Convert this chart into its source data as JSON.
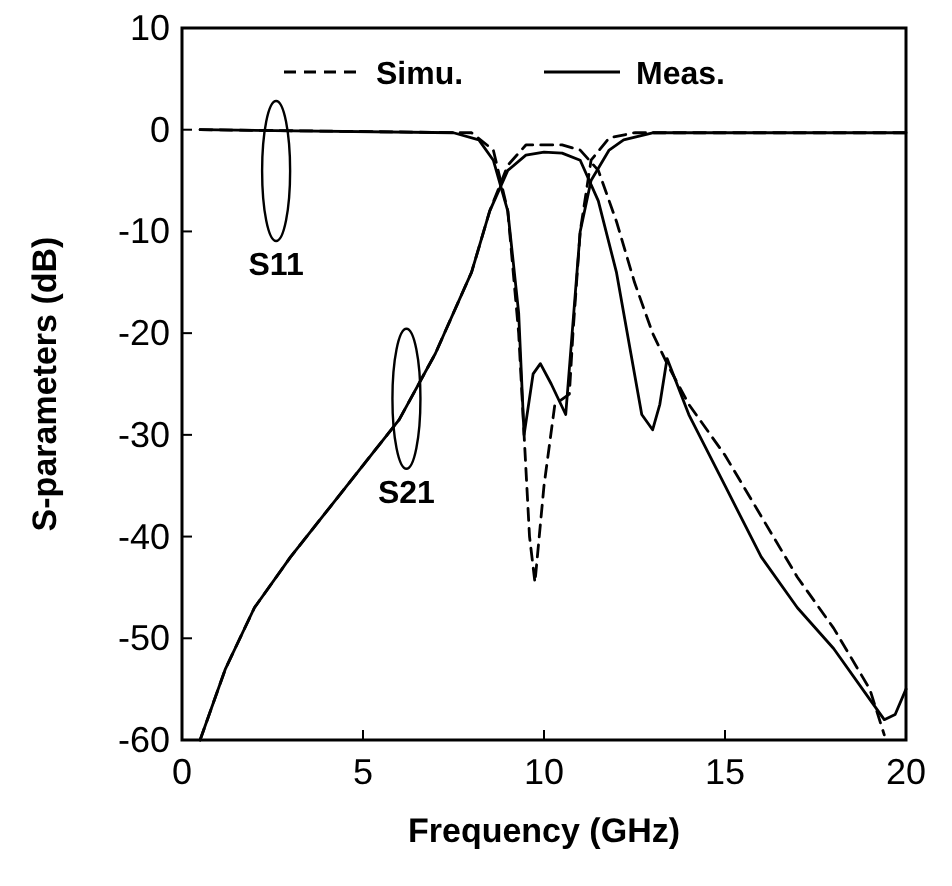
{
  "chart_data": {
    "type": "line",
    "xlabel": "Frequency (GHz)",
    "ylabel": "S-parameters (dB)",
    "xlim": [
      0,
      20
    ],
    "ylim": [
      -60,
      10
    ],
    "xticks": [
      0,
      5,
      10,
      15,
      20
    ],
    "yticks": [
      -60,
      -50,
      -40,
      -30,
      -20,
      -10,
      0,
      10
    ],
    "grid": false,
    "legend": "top",
    "series": [
      {
        "name": "Simu.",
        "color": "#000000",
        "line_style": "dashed",
        "x": [
          0.5,
          8,
          8.6,
          9,
          9.3,
          9.45,
          9.6,
          9.75,
          10,
          10.3,
          10.7,
          10.8,
          11,
          11.3,
          11.8,
          12.5,
          20
        ],
        "values": [
          0,
          -0.3,
          -2,
          -8,
          -20,
          -30,
          -40,
          -44.5,
          -35,
          -27,
          -26,
          -20,
          -10,
          -3,
          -0.8,
          -0.3,
          -0.3
        ]
      },
      {
        "name": "Meas.",
        "color": "#000000",
        "line_style": "solid",
        "x": [
          0.5,
          7.5,
          8.2,
          8.6,
          9,
          9.3,
          9.45,
          9.7,
          9.9,
          10.2,
          10.6,
          11,
          11.3,
          11.8,
          12.2,
          13,
          20
        ],
        "values": [
          0,
          -0.3,
          -1,
          -3,
          -8,
          -18,
          -30,
          -24,
          -23,
          -25,
          -28,
          -10,
          -5,
          -2,
          -1,
          -0.3,
          -0.3
        ]
      },
      {
        "color": "#000000",
        "line_style": "dashed",
        "x": [
          0.5,
          0.8,
          1.2,
          2,
          3,
          4,
          5,
          6,
          7,
          8,
          8.5,
          9,
          9.5,
          10,
          10.5,
          11,
          11.5,
          12,
          12.5,
          13,
          13.4,
          14,
          15,
          16,
          17,
          18,
          19,
          19.4
        ],
        "values": [
          -60,
          -57,
          -53,
          -47,
          -42,
          -37.5,
          -33,
          -28.5,
          -22,
          -14,
          -8,
          -3.5,
          -1.5,
          -1.5,
          -1.5,
          -2,
          -4,
          -9,
          -15,
          -20,
          -23,
          -27,
          -32,
          -38,
          -44,
          -49,
          -55,
          -59.5
        ]
      },
      {
        "color": "#000000",
        "line_style": "solid",
        "x": [
          0.5,
          0.8,
          1.2,
          2,
          3,
          4,
          5,
          6,
          7,
          8,
          8.5,
          9,
          9.5,
          10,
          10.5,
          11,
          11.5,
          12,
          12.4,
          12.7,
          13,
          13.2,
          13.4,
          14,
          15,
          16,
          17,
          18,
          19,
          19.4,
          19.7,
          20
        ],
        "values": [
          -60,
          -57,
          -53,
          -47,
          -42,
          -37.5,
          -33,
          -28.5,
          -22,
          -14,
          -8,
          -4,
          -2.5,
          -2.2,
          -2.3,
          -3,
          -7,
          -14,
          -22,
          -28,
          -29.5,
          -27,
          -22.5,
          -28,
          -35,
          -42,
          -47,
          -51,
          -56,
          -58,
          -57.5,
          -55
        ]
      }
    ],
    "annotations": [
      "S11",
      "S21"
    ]
  }
}
